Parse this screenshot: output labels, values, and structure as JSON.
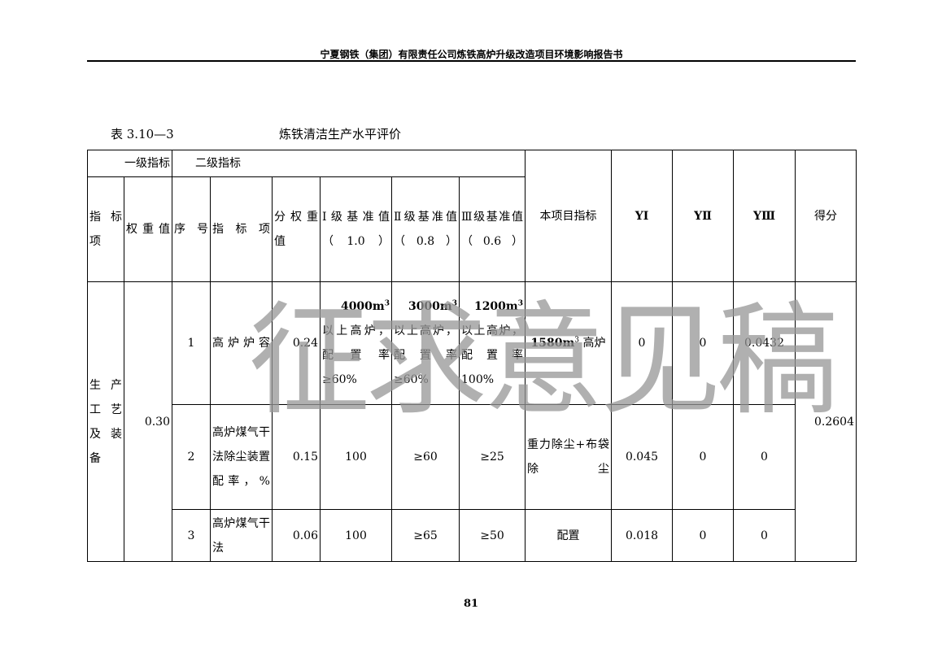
{
  "header": {
    "title": "宁夏钢铁（集团）有限责任公司炼铁高炉升级改造项目环境影响报告书"
  },
  "caption": {
    "number": "表 3.10—3",
    "title": "炼铁清洁生产水平评价"
  },
  "table": {
    "group_headers": {
      "level1": "一级指标",
      "level2": "二级指标"
    },
    "columns": {
      "indicator": "指标项",
      "weight": "权重值",
      "seq": "序号",
      "sub_indicator": "指标项",
      "sub_weight": "分权重值",
      "std1": "Ⅰ级基准值（1.0）",
      "std2": "Ⅱ级基准值（0.8）",
      "std3": "Ⅲ级基准值（0.6）",
      "project": "本项目指标",
      "y1": "YⅠ",
      "y2": "YⅡ",
      "y3": "YⅢ",
      "score": "得分"
    },
    "group": {
      "indicator": "生产工艺及装备",
      "weight": "0.30",
      "score": "0.2604"
    },
    "rows": [
      {
        "seq": "1",
        "indicator": "高炉炉容",
        "weight": "0.24",
        "std1_cap": "4000m",
        "std1": "以上高炉，配置率≥60%",
        "std2_cap": "3000m",
        "std2": "以上高炉，配置率≥60%",
        "std3_cap": "1200m",
        "std3": "以上高炉，配置率100%",
        "project_cap": "1580m",
        "project": "高炉",
        "y1": "0",
        "y2": "0",
        "y3": "0.0432"
      },
      {
        "seq": "2",
        "indicator": "高炉煤气干法除尘装置配率，%",
        "weight": "0.15",
        "std1": "100",
        "std2": "≥60",
        "std3": "≥25",
        "project": "重力除尘+布袋除尘",
        "y1": "0.045",
        "y2": "0",
        "y3": "0"
      },
      {
        "seq": "3",
        "indicator": "高炉煤气干法",
        "weight": "0.06",
        "std1": "100",
        "std2": "≥65",
        "std3": "≥50",
        "project": "配置",
        "y1": "0.018",
        "y2": "0",
        "y3": "0"
      }
    ],
    "superscript": "3"
  },
  "watermark": "征求意见稿",
  "footer": {
    "page": "81"
  }
}
